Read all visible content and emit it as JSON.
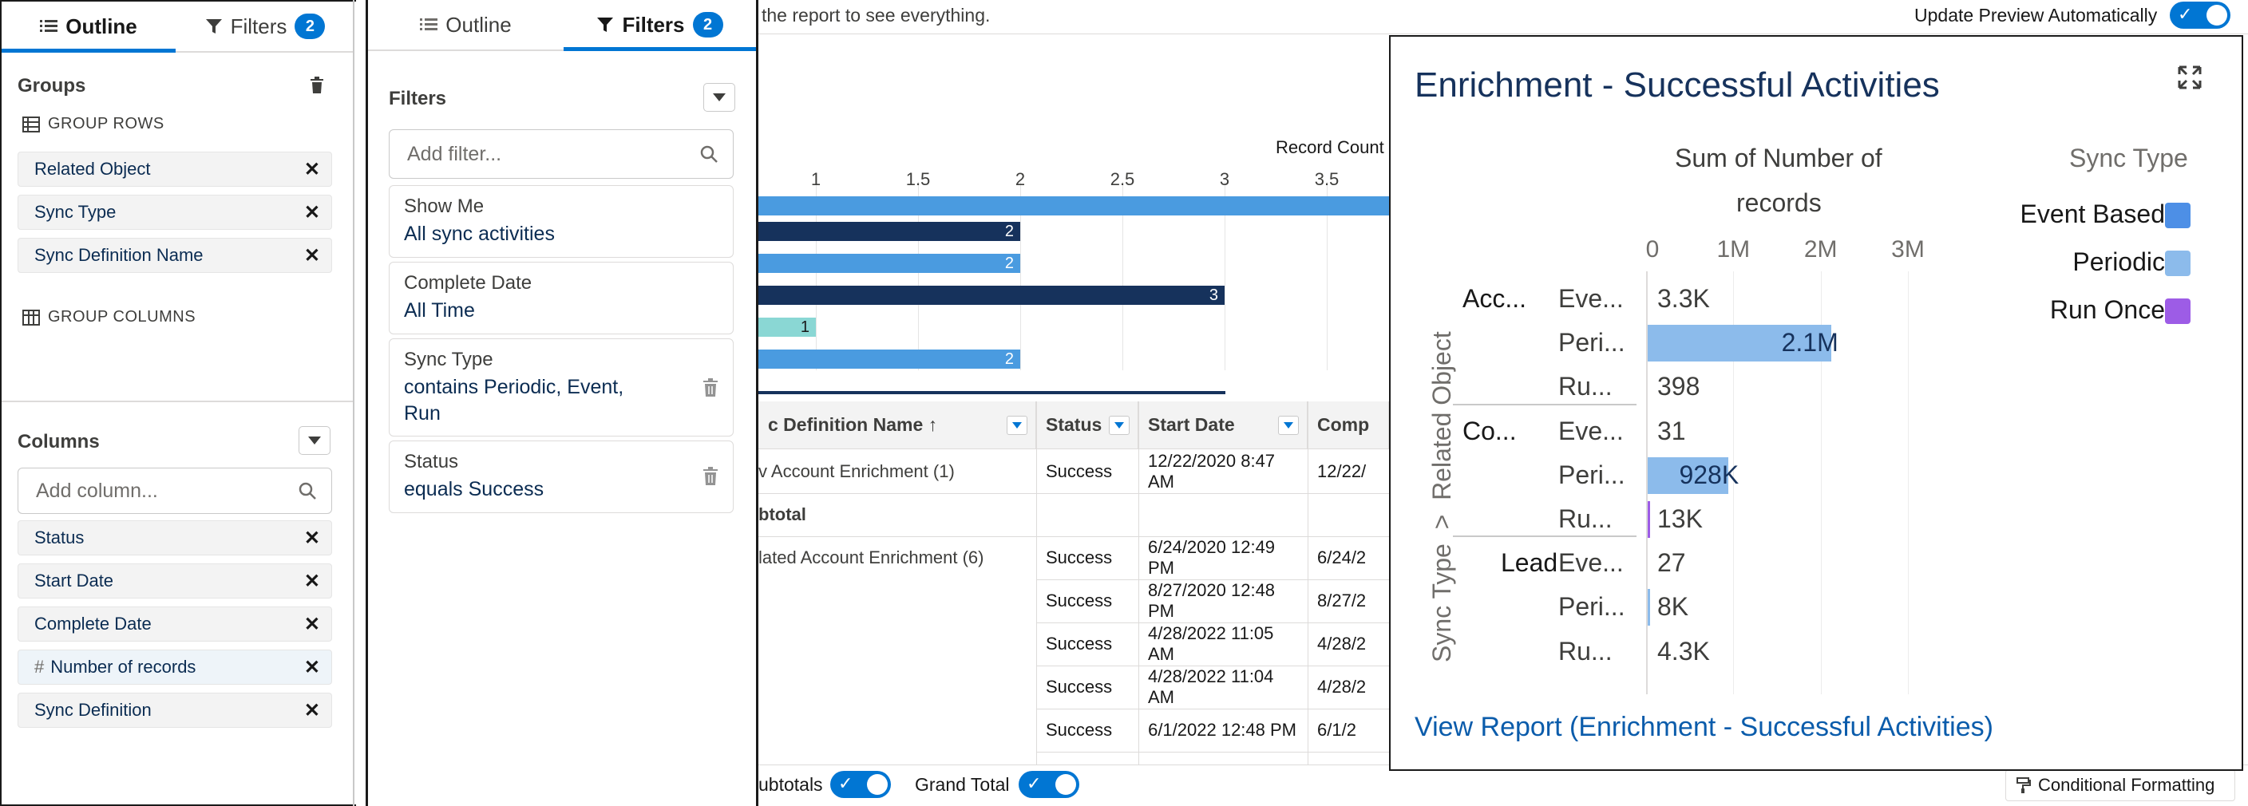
{
  "outline_panel": {
    "tab_outline": "Outline",
    "tab_filters": "Filters",
    "filters_count": "2",
    "groups_title": "Groups",
    "group_rows_label": "GROUP ROWS",
    "group_rows": [
      "Related Object",
      "Sync Type",
      "Sync Definition Name"
    ],
    "group_columns_label": "GROUP COLUMNS",
    "columns_title": "Columns",
    "add_column_placeholder": "Add column...",
    "columns": [
      {
        "label": "Status",
        "prefix": ""
      },
      {
        "label": "Start Date",
        "prefix": ""
      },
      {
        "label": "Complete Date",
        "prefix": ""
      },
      {
        "label": "Number of records",
        "prefix": "#"
      },
      {
        "label": "Sync Definition",
        "prefix": ""
      }
    ]
  },
  "filters_panel": {
    "tab_outline": "Outline",
    "tab_filters": "Filters",
    "filters_count": "2",
    "title": "Filters",
    "add_filter_placeholder": "Add filter...",
    "filters": [
      {
        "label": "Show Me",
        "value": "All sync activities"
      },
      {
        "label": "Complete Date",
        "value": "All Time"
      },
      {
        "label": "Sync Type",
        "value": "contains Periodic, Event, Run"
      },
      {
        "label": "Status",
        "value": "equals Success"
      }
    ]
  },
  "report": {
    "hint_text": "the report to see everything.",
    "update_preview_label": "Update Preview Automatically",
    "chart_axis_title": "Record Count",
    "chart_ticks": [
      "1",
      "1.5",
      "2",
      "2.5",
      "3",
      "3.5"
    ],
    "bar_labels": [
      "2",
      "2",
      "3",
      "1",
      "2"
    ],
    "table_headers": [
      "c Definition Name ↑",
      "Status",
      "Start Date",
      "Comp"
    ],
    "rows": [
      {
        "name": "v Account Enrichment  (1)",
        "status": "Success",
        "start": "12/22/2020 8:47 AM",
        "comp": "12/22/"
      },
      {
        "name": "btotal",
        "status": "",
        "start": "",
        "comp": ""
      },
      {
        "name": "lated Account Enrichment  (6)",
        "status": "Success",
        "start": "6/24/2020 12:49 PM",
        "comp": "6/24/2"
      },
      {
        "name": "",
        "status": "Success",
        "start": "8/27/2020 12:48 PM",
        "comp": "8/27/2"
      },
      {
        "name": "",
        "status": "Success",
        "start": "4/28/2022 11:05 AM",
        "comp": "4/28/2"
      },
      {
        "name": "",
        "status": "Success",
        "start": "4/28/2022 11:04 AM",
        "comp": "4/28/2"
      },
      {
        "name": "",
        "status": "Success",
        "start": "6/1/2022 12:48 PM",
        "comp": "6/1/2"
      }
    ],
    "subtotals_label": "ubtotals",
    "grand_total_label": "Grand Total",
    "conditional_formatting_label": "Conditional Formatting"
  },
  "preview": {
    "title": "Enrichment - Successful Activities",
    "measure_title_1": "Sum of Number of",
    "measure_title_2": "records",
    "dimension_axis": "Sync Type  >  Related Object",
    "legend_title": "Sync Type",
    "legend": [
      {
        "name": "Event Based",
        "color": "#4d8fe6"
      },
      {
        "name": "Periodic",
        "color": "#8cbbeb"
      },
      {
        "name": "Run Once",
        "color": "#9d5ce6"
      }
    ],
    "axis_ticks": [
      "0",
      "1M",
      "2M",
      "3M"
    ],
    "groups": [
      {
        "label": "Acc...",
        "rows": [
          {
            "label": "Eve...",
            "value": "3.3K"
          },
          {
            "label": "Peri...",
            "value": "2.1M"
          },
          {
            "label": "Ru...",
            "value": "398"
          }
        ]
      },
      {
        "label": "Co...",
        "rows": [
          {
            "label": "Eve...",
            "value": "31"
          },
          {
            "label": "Peri...",
            "value": "928K"
          },
          {
            "label": "Ru...",
            "value": "13K"
          }
        ]
      },
      {
        "label": "Lead",
        "rows": [
          {
            "label": "Eve...",
            "value": "27"
          },
          {
            "label": "Peri...",
            "value": "8K"
          },
          {
            "label": "Ru...",
            "value": "4.3K"
          }
        ]
      }
    ],
    "link_text": "View Report (Enrichment - Successful Activities)"
  },
  "chart_data": {
    "type": "bar",
    "title": "Enrichment - Successful Activities",
    "xlabel": "Sum of Number of records",
    "ylabel": "Sync Type > Related Object",
    "xlim": [
      0,
      3000000
    ],
    "categories": [
      "Acc... / Eve...",
      "Acc... / Peri...",
      "Acc... / Ru...",
      "Co... / Eve...",
      "Co... / Peri...",
      "Co... / Ru...",
      "Lead / Eve...",
      "Lead / Peri...",
      "Lead / Ru..."
    ],
    "series": [
      {
        "name": "Event Based",
        "values": [
          3300,
          null,
          null,
          31,
          null,
          null,
          27,
          null,
          null
        ]
      },
      {
        "name": "Periodic",
        "values": [
          null,
          2100000,
          null,
          null,
          928000,
          null,
          null,
          8000,
          null
        ]
      },
      {
        "name": "Run Once",
        "values": [
          null,
          null,
          398,
          null,
          null,
          13000,
          null,
          null,
          4300
        ]
      }
    ],
    "legend": "right"
  }
}
